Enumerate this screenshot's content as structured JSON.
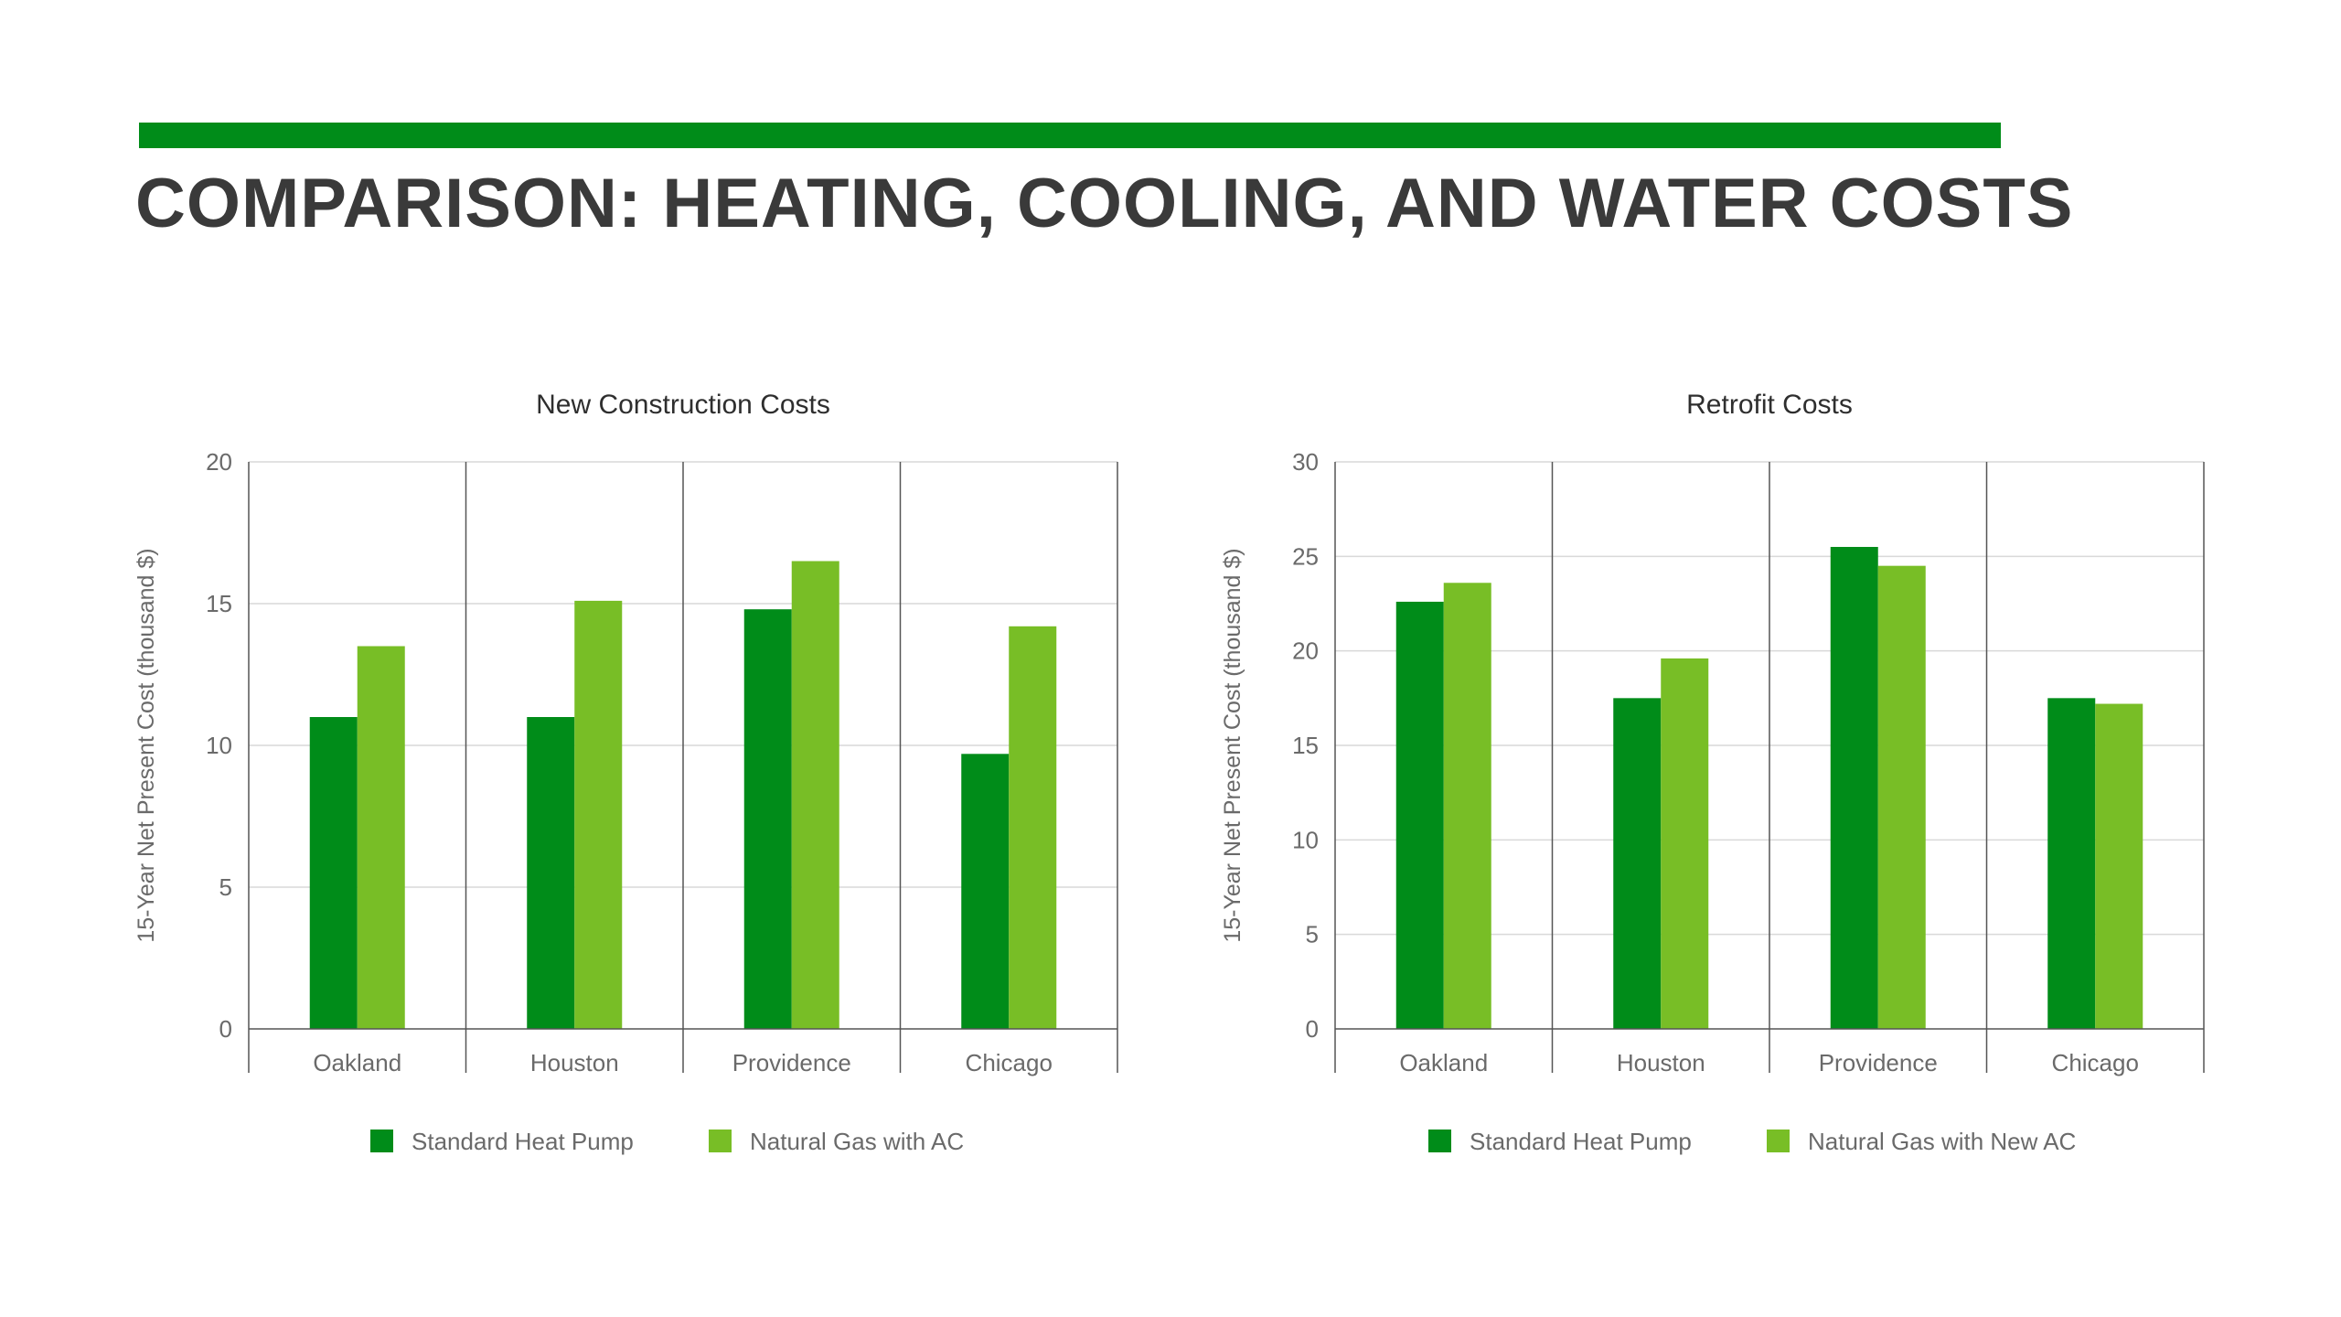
{
  "page": {
    "title": "COMPARISON: HEATING, COOLING, AND WATER COSTS"
  },
  "colors": {
    "accent": "#008c19",
    "title_text": "#3a3a3a",
    "series_dark": "#008c19",
    "series_light": "#78be26",
    "grid": "#d9d9d9",
    "divider": "#555555"
  },
  "chart_data": [
    {
      "type": "bar",
      "title": "New Construction Costs",
      "xlabel": "",
      "ylabel": "15-Year Net Present Cost (thousand $)",
      "ylim": [
        0,
        20
      ],
      "yticks": [
        "0",
        "5",
        "10",
        "15",
        "20"
      ],
      "categories": [
        "Oakland",
        "Houston",
        "Providence",
        "Chicago"
      ],
      "grid": true,
      "legend_position": "bottom",
      "series": [
        {
          "name": "Standard Heat Pump",
          "color": "#008c19",
          "values": [
            11.0,
            11.0,
            14.8,
            9.7
          ]
        },
        {
          "name": "Natural Gas with AC",
          "color": "#78be26",
          "values": [
            13.5,
            15.1,
            16.5,
            14.2
          ]
        }
      ]
    },
    {
      "type": "bar",
      "title": "Retrofit Costs",
      "xlabel": "",
      "ylabel": "15-Year Net Present Cost (thousand $)",
      "ylim": [
        0,
        30
      ],
      "yticks": [
        "0",
        "5",
        "10",
        "15",
        "20",
        "25",
        "30"
      ],
      "categories": [
        "Oakland",
        "Houston",
        "Providence",
        "Chicago"
      ],
      "grid": true,
      "legend_position": "bottom",
      "series": [
        {
          "name": "Standard Heat Pump",
          "color": "#008c19",
          "values": [
            22.6,
            17.5,
            25.5,
            17.5
          ]
        },
        {
          "name": "Natural Gas with New AC",
          "color": "#78be26",
          "values": [
            23.6,
            19.6,
            24.5,
            17.2
          ]
        }
      ]
    }
  ]
}
